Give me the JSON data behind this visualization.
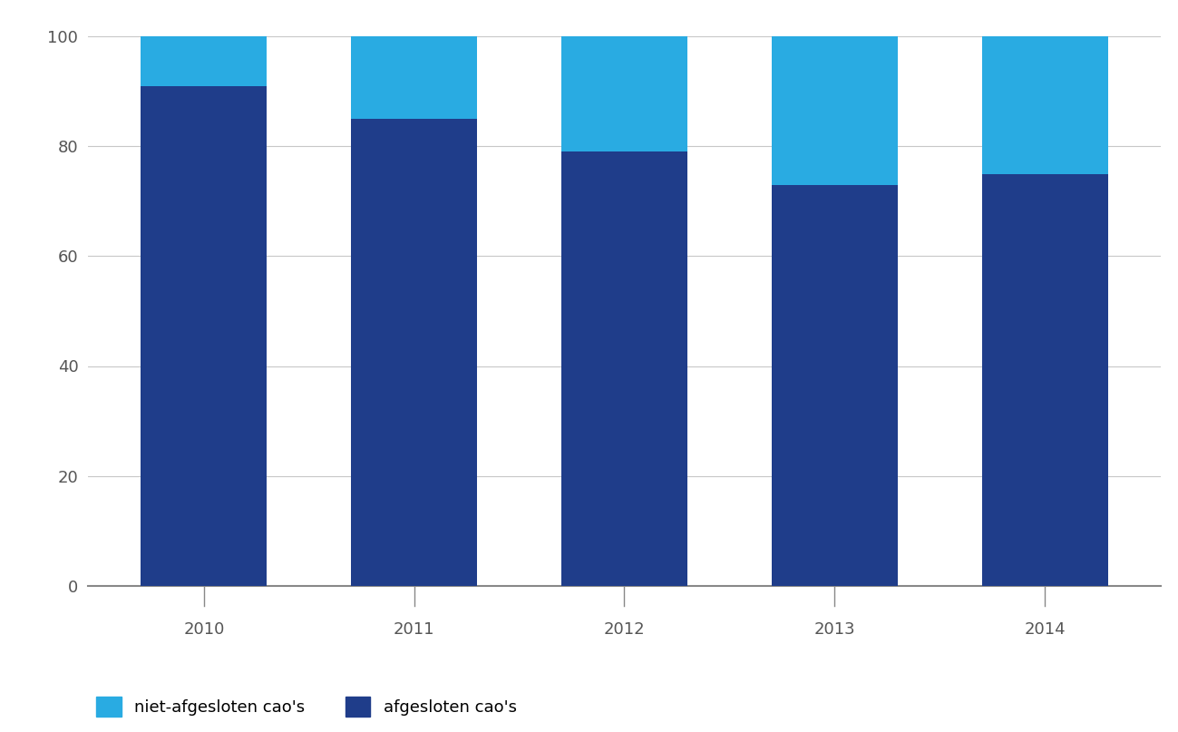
{
  "categories": [
    "2010",
    "2011",
    "2012",
    "2013",
    "2014"
  ],
  "afgesloten": [
    91,
    85,
    79,
    73,
    75
  ],
  "niet_afgesloten": [
    9,
    15,
    21,
    27,
    25
  ],
  "color_afgesloten": "#1F3D8A",
  "color_niet_afgesloten": "#29ABE2",
  "background_fig": "#ffffff",
  "background_xband": "#DCDCDC",
  "ylim": [
    0,
    100
  ],
  "yticks": [
    0,
    20,
    40,
    60,
    80,
    100
  ],
  "legend_niet": "niet-afgesloten cao's",
  "legend_afg": "afgesloten cao's",
  "bar_width": 0.6,
  "grid_color": "#C8C8C8",
  "tick_color": "#555555",
  "spine_color": "#888888"
}
